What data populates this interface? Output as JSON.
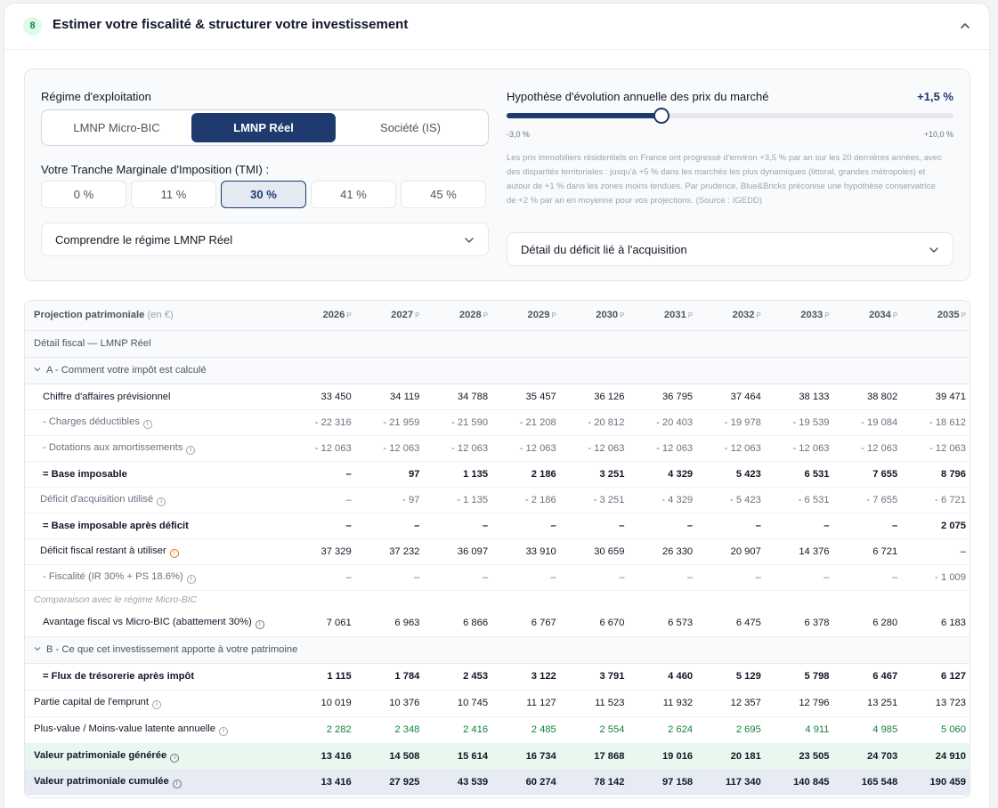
{
  "section": {
    "step_number": "8",
    "title": "Estimer votre fiscalité & structurer votre investissement"
  },
  "regime": {
    "label": "Régime d'exploitation",
    "options": [
      "LMNP Micro-BIC",
      "LMNP Réel",
      "Société (IS)"
    ],
    "selected": "LMNP Réel"
  },
  "tmi": {
    "label": "Votre Tranche Marginale d'Imposition (TMI) :",
    "options": [
      "0 %",
      "11 %",
      "30 %",
      "41 %",
      "45 %"
    ],
    "selected": "30 %"
  },
  "accordion_left": "Comprendre le régime LMNP Réel",
  "market": {
    "title": "Hypothèse d'évolution annuelle des prix du marché",
    "value_label": "+1,5 %",
    "value": 1.5,
    "min": -3.0,
    "max": 10.0,
    "min_label": "-3,0 %",
    "max_label": "+10,0 %",
    "note": "Les prix immobiliers résidentiels en France ont progressé d'environ +3,5 % par an sur les 20 dernières années, avec des disparités territoriales : jusqu'à +5 % dans les marchés les plus dynamiques (littoral, grandes métropoles) et autour de +1 % dans les zones moins tendues. Par prudence, Blue&Bricks préconise une hypothèse conservatrice de +2 % par an en moyenne pour vos projections. (Source : IGEDD)"
  },
  "accordion_right": "Détail du déficit lié à l'acquisition",
  "table": {
    "header_label": "Projection patrimoniale",
    "header_unit": "(en €)",
    "year_suffix": "P",
    "years": [
      "2026",
      "2027",
      "2028",
      "2029",
      "2030",
      "2031",
      "2032",
      "2033",
      "2034",
      "2035"
    ],
    "detail_title": "Détail fiscal — LMNP Réel",
    "section_a": "A - Comment votre impôt est calculé",
    "section_b": "B - Ce que cet investissement apporte à votre patrimoine",
    "comparison_label": "Comparaison avec le régime Micro-BIC",
    "rows_a": [
      {
        "label": "Chiffre d'affaires prévisionnel",
        "style": "plain",
        "values": [
          "33 450",
          "34 119",
          "34 788",
          "35 457",
          "36 126",
          "36 795",
          "37 464",
          "38 133",
          "38 802",
          "39 471"
        ]
      },
      {
        "label": "- Charges déductibles",
        "style": "neg",
        "info": true,
        "values": [
          "- 22 316",
          "- 21 959",
          "- 21 590",
          "- 21 208",
          "- 20 812",
          "- 20 403",
          "- 19 978",
          "- 19 539",
          "- 19 084",
          "- 18 612"
        ]
      },
      {
        "label": "- Dotations aux amortissements",
        "style": "neg",
        "info": true,
        "values": [
          "- 12 063",
          "- 12 063",
          "- 12 063",
          "- 12 063",
          "- 12 063",
          "- 12 063",
          "- 12 063",
          "- 12 063",
          "- 12 063",
          "- 12 063"
        ]
      },
      {
        "label": "= Base imposable",
        "style": "bold",
        "values": [
          "–",
          "97",
          "1 135",
          "2 186",
          "3 251",
          "4 329",
          "5 423",
          "6 531",
          "7 655",
          "8 796"
        ]
      },
      {
        "label": "Déficit d'acquisition utilisé",
        "style": "sub",
        "info": true,
        "values": [
          "–",
          "- 97",
          "- 1 135",
          "- 2 186",
          "- 3 251",
          "- 4 329",
          "- 5 423",
          "- 6 531",
          "- 7 655",
          "- 6 721"
        ]
      },
      {
        "label": "= Base imposable après déficit",
        "style": "bold",
        "values": [
          "–",
          "–",
          "–",
          "–",
          "–",
          "–",
          "–",
          "–",
          "–",
          "2 075"
        ]
      },
      {
        "label": "Déficit fiscal restant à utiliser",
        "style": "orange",
        "info": true,
        "values": [
          "37 329",
          "37 232",
          "36 097",
          "33 910",
          "30 659",
          "26 330",
          "20 907",
          "14 376",
          "6 721",
          "–"
        ]
      },
      {
        "label": "- Fiscalité (IR 30% + PS 18.6%)",
        "style": "neg",
        "info": true,
        "values": [
          "–",
          "–",
          "–",
          "–",
          "–",
          "–",
          "–",
          "–",
          "–",
          "- 1 009"
        ]
      }
    ],
    "comparison_row": {
      "label": "Avantage fiscal vs Micro-BIC (abattement 30%)",
      "info": true,
      "values": [
        "7 061",
        "6 963",
        "6 866",
        "6 767",
        "6 670",
        "6 573",
        "6 475",
        "6 378",
        "6 280",
        "6 183"
      ]
    },
    "rows_b": [
      {
        "label": "= Flux de trésorerie après impôt",
        "style": "bold",
        "values": [
          "1 115",
          "1 784",
          "2 453",
          "3 122",
          "3 791",
          "4 460",
          "5 129",
          "5 798",
          "6 467",
          "6 127"
        ]
      },
      {
        "label": "Partie capital de l'emprunt",
        "style": "plainleft",
        "info": true,
        "values": [
          "10 019",
          "10 376",
          "10 745",
          "11 127",
          "11 523",
          "11 932",
          "12 357",
          "12 796",
          "13 251",
          "13 723"
        ]
      },
      {
        "label": "Plus-value / Moins-value latente annuelle",
        "style": "greenval",
        "info": true,
        "values": [
          "2 282",
          "2 348",
          "2 416",
          "2 485",
          "2 554",
          "2 624",
          "2 695",
          "4 911",
          "4 985",
          "5 060"
        ]
      }
    ],
    "generated_row": {
      "label": "Valeur patrimoniale générée",
      "values": [
        "13 416",
        "14 508",
        "15 614",
        "16 734",
        "17 868",
        "19 016",
        "20 181",
        "23 505",
        "24 703",
        "24 910"
      ]
    },
    "cumulated_row": {
      "label": "Valeur patrimoniale cumulée",
      "values": [
        "13 416",
        "27 925",
        "43 539",
        "60 274",
        "78 142",
        "97 158",
        "117 340",
        "140 845",
        "165 548",
        "190 459"
      ]
    }
  },
  "colors": {
    "navy": "#1e3a6e",
    "green": "#15803d",
    "orange": "#d97706"
  }
}
